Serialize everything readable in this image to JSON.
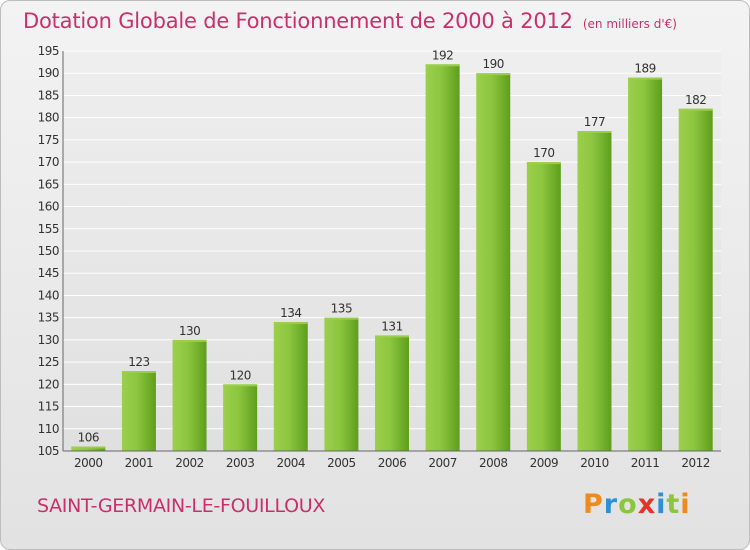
{
  "header": {
    "title": "Dotation Globale de Fonctionnement de 2000 à 2012",
    "unit": "(en milliers d'€)"
  },
  "footer": {
    "commune": "SAINT-GERMAIN-LE-FOUILLOUX",
    "logo_letters": [
      "P",
      "r",
      "o",
      "x",
      "i",
      "t",
      "i"
    ],
    "logo_colors": [
      "#f08a1c",
      "#2f8fd6",
      "#8cc63f",
      "#e6332a",
      "#2f8fd6",
      "#8cc63f",
      "#f08a1c"
    ]
  },
  "colors": {
    "bar_light": "#9ccf4c",
    "bar_dark": "#5e9e1c",
    "axis": "#666666",
    "grid": "#ffffff",
    "text": "#333333"
  },
  "chart_data": {
    "type": "bar",
    "title": "Dotation Globale de Fonctionnement de 2000 à 2012",
    "subtitle": "(en milliers d'€)",
    "xlabel": "",
    "ylabel": "",
    "categories": [
      "2000",
      "2001",
      "2002",
      "2003",
      "2004",
      "2005",
      "2006",
      "2007",
      "2008",
      "2009",
      "2010",
      "2011",
      "2012"
    ],
    "values": [
      106,
      123,
      130,
      120,
      134,
      135,
      131,
      192,
      190,
      170,
      177,
      189,
      182
    ],
    "ylim": [
      105,
      195
    ],
    "yticks": [
      105,
      110,
      115,
      120,
      125,
      130,
      135,
      140,
      145,
      150,
      155,
      160,
      165,
      170,
      175,
      180,
      185,
      190,
      195
    ],
    "grid": true,
    "legend": "none"
  }
}
